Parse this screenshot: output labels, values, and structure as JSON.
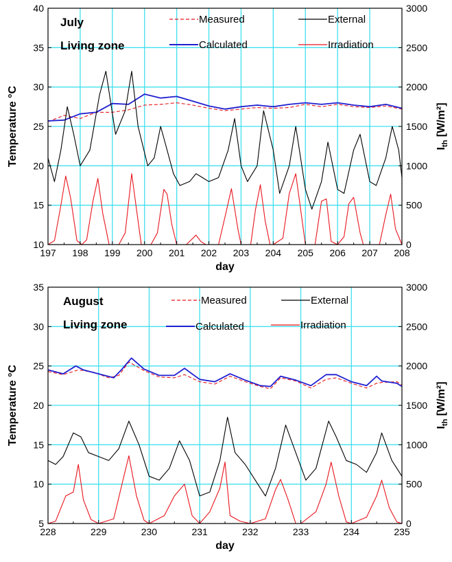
{
  "chart_data": [
    {
      "type": "line",
      "title_lines": [
        "July",
        "Living zone"
      ],
      "xlabel": "day",
      "ylabel": "Temperature °C",
      "y2label": "I_th [W/m²]",
      "xlim": [
        197,
        208
      ],
      "ylim": [
        10,
        40
      ],
      "y2lim": [
        0,
        3000
      ],
      "x_ticks": [
        "197",
        "198",
        "199",
        "200",
        "201",
        "202",
        "203",
        "204",
        "205",
        "206",
        "207",
        "208"
      ],
      "y_ticks": [
        "10",
        "15",
        "20",
        "25",
        "30",
        "35",
        "40"
      ],
      "y2_ticks": [
        "0",
        "500",
        "1000",
        "1500",
        "2000",
        "2500",
        "3000"
      ],
      "grid": true,
      "legend": [
        "Measured",
        "Calculated",
        "External",
        "Irradiation"
      ],
      "series": [
        {
          "name": "Measured",
          "color": "#e8141c",
          "dash": "dashed",
          "axis": "left",
          "x": [
            197,
            197.5,
            198,
            198.5,
            199,
            199.5,
            200,
            200.5,
            201,
            201.5,
            202,
            202.5,
            203,
            203.5,
            204,
            204.5,
            205,
            205.5,
            206,
            206.5,
            207,
            207.5,
            208
          ],
          "y": [
            25.6,
            26.4,
            26,
            26.8,
            26.8,
            27.1,
            27.7,
            27.8,
            28,
            27.7,
            27.3,
            27,
            27.2,
            27.4,
            27.3,
            27.4,
            27.8,
            27.5,
            27.8,
            27.5,
            27.4,
            27.6,
            27.2
          ]
        },
        {
          "name": "Calculated",
          "color": "#1f1fd0",
          "dash": "solid",
          "axis": "left",
          "x": [
            197,
            197.5,
            198,
            198.5,
            199,
            199.5,
            200,
            200.5,
            201,
            201.5,
            202,
            202.5,
            203,
            203.5,
            204,
            204.5,
            205,
            205.5,
            206,
            206.5,
            207,
            207.5,
            208
          ],
          "y": [
            25.7,
            25.8,
            26.6,
            26.8,
            27.9,
            27.8,
            29.1,
            28.6,
            28.8,
            28.2,
            27.6,
            27.2,
            27.5,
            27.7,
            27.5,
            27.8,
            28,
            27.8,
            28,
            27.7,
            27.5,
            27.8,
            27.3
          ]
        },
        {
          "name": "External",
          "color": "#000000",
          "dash": "solid",
          "axis": "left",
          "x": [
            197,
            197.2,
            197.4,
            197.6,
            197.8,
            198,
            198.3,
            198.6,
            198.8,
            199.1,
            199.4,
            199.6,
            199.8,
            200.1,
            200.3,
            200.5,
            200.7,
            200.9,
            201.1,
            201.4,
            201.6,
            201.8,
            202,
            202.3,
            202.6,
            202.8,
            203,
            203.2,
            203.5,
            203.7,
            204,
            204.2,
            204.5,
            204.7,
            205,
            205.2,
            205.5,
            205.7,
            206,
            206.2,
            206.5,
            206.7,
            207,
            207.2,
            207.5,
            207.7,
            207.9,
            208
          ],
          "y": [
            21,
            18,
            22,
            27.5,
            24,
            20,
            22,
            29,
            32,
            24,
            27,
            32,
            25,
            20,
            21,
            25,
            22,
            19,
            17.5,
            18,
            19,
            18.5,
            18,
            18.5,
            22,
            26,
            20,
            18,
            20,
            27,
            22,
            16.5,
            20,
            25,
            17,
            14.5,
            18,
            23,
            17,
            16.5,
            22,
            24,
            18,
            17.5,
            21,
            25,
            22,
            18.5
          ]
        },
        {
          "name": "Irradiation",
          "color": "#e8141c",
          "dash": "solid",
          "axis": "right",
          "x": [
            197,
            197.2,
            197.4,
            197.55,
            197.7,
            197.9,
            198.05,
            198.2,
            198.4,
            198.55,
            198.7,
            198.9,
            199.2,
            199.4,
            199.6,
            199.8,
            199.9,
            200.2,
            200.4,
            200.6,
            200.7,
            200.85,
            201,
            201.3,
            201.6,
            201.75,
            201.9,
            202,
            202.3,
            202.5,
            202.7,
            202.9,
            203,
            203.3,
            203.45,
            203.6,
            203.75,
            203.9,
            204,
            204.3,
            204.5,
            204.7,
            204.9,
            205,
            205.3,
            205.5,
            205.65,
            205.8,
            206,
            206.2,
            206.35,
            206.5,
            206.7,
            206.8,
            207,
            207.3,
            207.5,
            207.65,
            207.8,
            208
          ],
          "y": [
            0,
            50,
            500,
            870,
            600,
            50,
            0,
            60,
            560,
            840,
            400,
            0,
            0,
            150,
            900,
            300,
            0,
            0,
            150,
            700,
            640,
            250,
            0,
            0,
            120,
            40,
            0,
            0,
            0,
            350,
            710,
            200,
            0,
            0,
            450,
            760,
            300,
            0,
            0,
            80,
            650,
            900,
            300,
            0,
            0,
            550,
            580,
            40,
            0,
            100,
            520,
            600,
            150,
            0,
            0,
            0,
            380,
            640,
            200,
            0
          ]
        }
      ]
    },
    {
      "type": "line",
      "title_lines": [
        "August",
        "Living zone"
      ],
      "xlabel": "day",
      "ylabel": "Temperature °C",
      "y2label": "I_th [W/m²]",
      "xlim": [
        228,
        235
      ],
      "ylim": [
        5,
        35
      ],
      "y2lim": [
        0,
        3000
      ],
      "x_ticks": [
        "228",
        "229",
        "230",
        "231",
        "232",
        "233",
        "234",
        "235"
      ],
      "y_ticks": [
        "5",
        "10",
        "15",
        "20",
        "25",
        "30",
        "35"
      ],
      "y2_ticks": [
        "0",
        "500",
        "1000",
        "1500",
        "2000",
        "2500",
        "3000"
      ],
      "grid": true,
      "legend": [
        "Measured",
        "Calculated",
        "External",
        "Irradiation"
      ],
      "series": [
        {
          "name": "Measured",
          "color": "#e8141c",
          "dash": "dashed",
          "axis": "left",
          "x": [
            228,
            228.3,
            228.6,
            228.9,
            229.2,
            229.4,
            229.6,
            229.9,
            230.2,
            230.5,
            230.7,
            231,
            231.3,
            231.6,
            231.9,
            232.2,
            232.4,
            232.6,
            232.9,
            233.2,
            233.5,
            233.7,
            234,
            234.3,
            234.5,
            234.6,
            234.9,
            235
          ],
          "y": [
            24.3,
            23.9,
            24.5,
            24.2,
            23.5,
            23.8,
            25.5,
            24.4,
            23.6,
            23.5,
            23.9,
            23,
            22.7,
            23.7,
            23,
            22.4,
            22.1,
            23.5,
            23.1,
            22.2,
            23.3,
            23.5,
            22.8,
            22.2,
            22.8,
            22.9,
            23,
            22.6
          ]
        },
        {
          "name": "Calculated",
          "color": "#1f1fd0",
          "dash": "solid",
          "axis": "left",
          "x": [
            228,
            228.3,
            228.55,
            228.7,
            229,
            229.3,
            229.45,
            229.65,
            229.9,
            230.2,
            230.5,
            230.7,
            231,
            231.3,
            231.6,
            231.9,
            232.2,
            232.4,
            232.6,
            232.9,
            233.2,
            233.5,
            233.7,
            234,
            234.3,
            234.5,
            234.6,
            234.9,
            235
          ],
          "y": [
            24.5,
            24,
            25,
            24.5,
            24,
            23.5,
            24.5,
            26,
            24.6,
            23.8,
            23.8,
            24.7,
            23.3,
            23,
            24,
            23.2,
            22.5,
            22.4,
            23.7,
            23.2,
            22.5,
            23.9,
            23.9,
            23,
            22.5,
            23.7,
            23.1,
            22.8,
            22.4
          ]
        },
        {
          "name": "External",
          "color": "#000000",
          "dash": "solid",
          "axis": "left",
          "x": [
            228,
            228.15,
            228.3,
            228.5,
            228.65,
            228.8,
            229,
            229.2,
            229.4,
            229.6,
            229.8,
            230,
            230.2,
            230.4,
            230.6,
            230.8,
            231,
            231.2,
            231.4,
            231.55,
            231.7,
            231.9,
            232.1,
            232.3,
            232.5,
            232.7,
            232.9,
            233.1,
            233.3,
            233.55,
            233.7,
            233.9,
            234.1,
            234.3,
            234.5,
            234.6,
            234.8,
            235
          ],
          "y": [
            13,
            12.5,
            13.5,
            16.5,
            16,
            14,
            13.5,
            13,
            14.5,
            18,
            15,
            11,
            10.5,
            12,
            15.5,
            13,
            8.5,
            9,
            13,
            18.5,
            14,
            12.5,
            10.5,
            8.5,
            12,
            17.5,
            14,
            10.5,
            12,
            18,
            16,
            13,
            12.5,
            11.5,
            14,
            16.5,
            13,
            11
          ]
        },
        {
          "name": "Irradiation",
          "color": "#e8141c",
          "dash": "solid",
          "axis": "right",
          "x": [
            228,
            228.15,
            228.35,
            228.5,
            228.6,
            228.7,
            228.85,
            229,
            229.3,
            229.5,
            229.6,
            229.75,
            229.9,
            230,
            230.3,
            230.5,
            230.7,
            230.85,
            231,
            231.2,
            231.4,
            231.5,
            231.6,
            231.8,
            232,
            232.3,
            232.5,
            232.6,
            232.75,
            232.9,
            233,
            233.3,
            233.5,
            233.6,
            233.75,
            233.9,
            234,
            234.3,
            234.5,
            234.6,
            234.75,
            234.9,
            235
          ],
          "y": [
            0,
            30,
            350,
            400,
            750,
            300,
            50,
            0,
            60,
            600,
            860,
            350,
            40,
            0,
            100,
            350,
            500,
            100,
            0,
            150,
            450,
            780,
            100,
            30,
            0,
            60,
            430,
            560,
            300,
            0,
            0,
            150,
            500,
            780,
            350,
            20,
            0,
            80,
            350,
            550,
            200,
            20,
            0
          ]
        }
      ]
    }
  ]
}
